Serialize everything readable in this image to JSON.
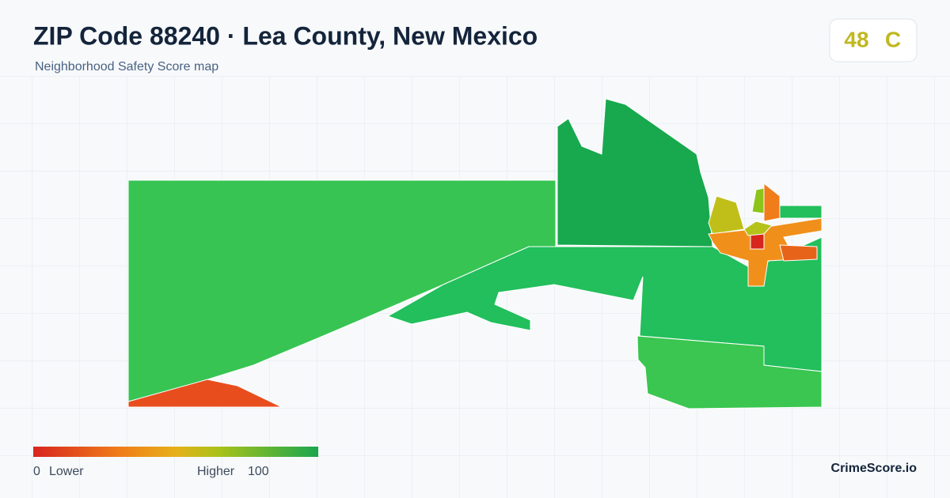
{
  "header": {
    "title": "ZIP Code 88240 · Lea County, New Mexico",
    "subtitle": "Neighborhood Safety Score map"
  },
  "score": {
    "value": "48",
    "grade": "C"
  },
  "legend": {
    "min": "0",
    "min_label": "Lower",
    "max_label": "Higher",
    "max": "100"
  },
  "brand": "CrimeScore.io"
}
